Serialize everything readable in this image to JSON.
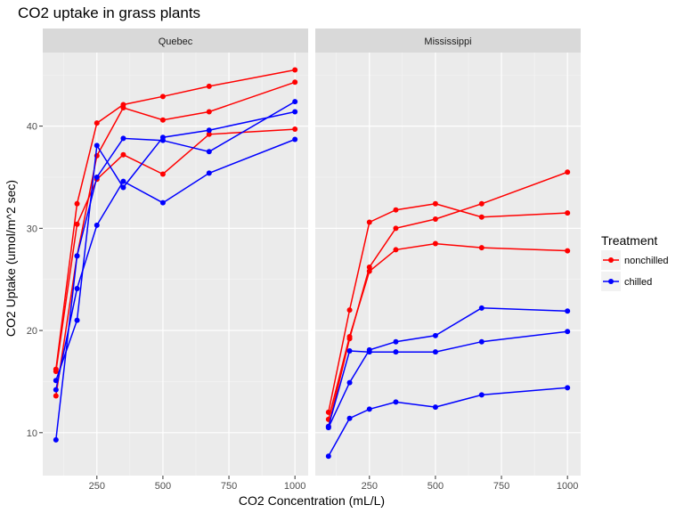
{
  "chart_data": {
    "type": "line",
    "title": "CO2 uptake in grass plants",
    "xlabel": "CO2 Concentration (mL/L)",
    "ylabel": "CO2 Uptake (umol/m^2 sec)",
    "xlim": [
      45,
      1050
    ],
    "ylim": [
      5.8,
      47.2
    ],
    "x_ticks": [
      250,
      500,
      750,
      1000
    ],
    "y_ticks": [
      10,
      20,
      30,
      40
    ],
    "x_minor": [
      125,
      375,
      625,
      875
    ],
    "y_minor": [
      15,
      25,
      35,
      45
    ],
    "x": [
      95,
      175,
      250,
      350,
      500,
      675,
      1000
    ],
    "grid": true,
    "legend": {
      "title": "Treatment",
      "position": "right",
      "entries": [
        {
          "label": "nonchilled",
          "color": "#ff0000"
        },
        {
          "label": "chilled",
          "color": "#0000ff"
        }
      ]
    },
    "panels": [
      {
        "label": "Quebec",
        "series": [
          {
            "treatment": "nonchilled",
            "color": "#ff0000",
            "values": [
              16.0,
              30.4,
              34.8,
              37.2,
              35.3,
              39.2,
              39.7
            ]
          },
          {
            "treatment": "nonchilled",
            "color": "#ff0000",
            "values": [
              13.6,
              27.3,
              37.1,
              41.8,
              40.6,
              41.4,
              44.3
            ]
          },
          {
            "treatment": "nonchilled",
            "color": "#ff0000",
            "values": [
              16.2,
              32.4,
              40.3,
              42.1,
              42.9,
              43.9,
              45.5
            ]
          },
          {
            "treatment": "chilled",
            "color": "#0000ff",
            "values": [
              14.2,
              24.1,
              30.3,
              34.6,
              32.5,
              35.4,
              38.7
            ]
          },
          {
            "treatment": "chilled",
            "color": "#0000ff",
            "values": [
              9.3,
              27.3,
              35.0,
              38.8,
              38.6,
              37.5,
              42.4
            ]
          },
          {
            "treatment": "chilled",
            "color": "#0000ff",
            "values": [
              15.1,
              21.0,
              38.1,
              34.0,
              38.9,
              39.6,
              41.4
            ]
          }
        ]
      },
      {
        "label": "Mississippi",
        "series": [
          {
            "treatment": "nonchilled",
            "color": "#ff0000",
            "values": [
              10.6,
              19.2,
              26.2,
              30.0,
              30.9,
              32.4,
              35.5
            ]
          },
          {
            "treatment": "nonchilled",
            "color": "#ff0000",
            "values": [
              12.0,
              22.0,
              30.6,
              31.8,
              32.4,
              31.1,
              31.5
            ]
          },
          {
            "treatment": "nonchilled",
            "color": "#ff0000",
            "values": [
              11.3,
              19.4,
              25.8,
              27.9,
              28.5,
              28.1,
              27.8
            ]
          },
          {
            "treatment": "chilled",
            "color": "#0000ff",
            "values": [
              10.5,
              14.9,
              18.1,
              18.9,
              19.5,
              22.2,
              21.9
            ]
          },
          {
            "treatment": "chilled",
            "color": "#0000ff",
            "values": [
              7.7,
              11.4,
              12.3,
              13.0,
              12.5,
              13.7,
              14.4
            ]
          },
          {
            "treatment": "chilled",
            "color": "#0000ff",
            "values": [
              10.6,
              18.0,
              17.9,
              17.9,
              17.9,
              18.9,
              19.9
            ]
          }
        ]
      }
    ]
  }
}
